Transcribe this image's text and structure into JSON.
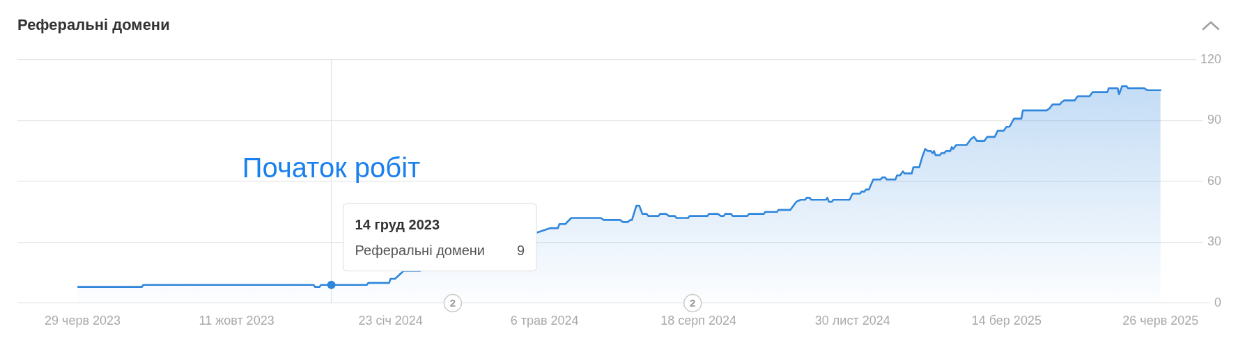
{
  "chart_data": {
    "type": "area",
    "title": "Реферальні домени",
    "x": [
      "2023-06-26",
      "2023-08-08",
      "2023-08-09",
      "2023-12-02",
      "2023-12-03",
      "2023-12-06",
      "2023-12-07",
      "2023-12-14",
      "2024-01-07",
      "2024-01-08",
      "2024-01-22",
      "2024-01-23",
      "2024-01-26",
      "2024-02-01",
      "2024-02-12",
      "2024-05-10",
      "2024-05-15",
      "2024-05-16",
      "2024-05-20",
      "2024-05-24",
      "2024-06-13",
      "2024-06-15",
      "2024-06-26",
      "2024-06-28",
      "2024-07-01",
      "2024-07-03",
      "2024-07-04",
      "2024-07-07",
      "2024-07-09",
      "2024-07-11",
      "2024-07-14",
      "2024-07-15",
      "2024-07-22",
      "2024-07-23",
      "2024-07-27",
      "2024-07-29",
      "2024-08-02",
      "2024-08-03",
      "2024-08-11",
      "2024-08-12",
      "2024-08-24",
      "2024-08-25",
      "2024-08-31",
      "2024-09-02",
      "2024-09-04",
      "2024-09-05",
      "2024-09-09",
      "2024-09-10",
      "2024-09-20",
      "2024-09-21",
      "2024-10-01",
      "2024-10-02",
      "2024-10-10",
      "2024-10-11",
      "2024-10-19",
      "2024-10-23",
      "2024-10-26",
      "2024-10-29",
      "2024-10-30",
      "2024-11-01",
      "2024-11-02",
      "2024-11-12",
      "2024-11-13",
      "2024-11-14",
      "2024-11-16",
      "2024-11-17",
      "2024-11-28",
      "2024-11-30",
      "2024-12-05",
      "2024-12-06",
      "2024-12-08",
      "2024-12-09",
      "2024-12-11",
      "2024-12-14",
      "2024-12-19",
      "2024-12-20",
      "2024-12-22",
      "2024-12-23",
      "2024-12-29",
      "2024-12-30",
      "2025-01-01",
      "2025-01-03",
      "2025-01-04",
      "2025-01-09",
      "2025-01-10",
      "2025-01-14",
      "2025-01-16",
      "2025-01-18",
      "2025-01-20",
      "2025-01-22",
      "2025-01-23",
      "2025-01-24",
      "2025-01-25",
      "2025-01-28",
      "2025-01-29",
      "2025-01-31",
      "2025-02-01",
      "2025-02-04",
      "2025-02-05",
      "2025-02-06",
      "2025-02-08",
      "2025-02-15",
      "2025-02-17",
      "2025-02-18",
      "2025-02-20",
      "2025-02-22",
      "2025-02-27",
      "2025-03-01",
      "2025-03-06",
      "2025-03-08",
      "2025-03-12",
      "2025-03-14",
      "2025-03-16",
      "2025-03-19",
      "2025-03-24",
      "2025-03-25",
      "2025-04-10",
      "2025-04-12",
      "2025-04-14",
      "2025-04-19",
      "2025-04-20",
      "2025-04-22",
      "2025-04-29",
      "2025-05-01",
      "2025-05-09",
      "2025-05-11",
      "2025-05-21",
      "2025-05-22",
      "2025-05-28",
      "2025-05-29",
      "2025-05-31",
      "2025-06-03",
      "2025-06-04",
      "2025-06-15",
      "2025-06-17",
      "2025-06-26"
    ],
    "values": [
      8,
      8,
      9,
      9,
      8,
      8,
      9,
      9,
      9,
      10,
      10,
      12,
      12,
      16,
      16,
      37,
      37,
      39,
      39,
      42,
      42,
      41,
      41,
      40,
      40,
      41,
      41,
      48,
      48,
      44,
      44,
      43,
      43,
      44,
      44,
      43,
      43,
      42,
      42,
      43,
      43,
      44,
      44,
      43,
      43,
      44,
      44,
      43,
      43,
      44,
      44,
      45,
      45,
      46,
      46,
      50,
      51,
      51,
      52,
      52,
      51,
      51,
      52,
      50,
      50,
      51,
      51,
      54,
      54,
      55,
      55,
      56,
      56,
      61,
      61,
      62,
      62,
      61,
      61,
      63,
      63,
      65,
      64,
      64,
      67,
      67,
      72,
      76,
      75,
      75,
      74,
      75,
      73,
      73,
      74,
      74,
      75,
      75,
      77,
      76,
      78,
      78,
      80,
      81,
      82,
      80,
      80,
      82,
      82,
      85,
      85,
      87,
      87,
      91,
      91,
      95,
      95,
      96,
      98,
      98,
      99,
      100,
      100,
      102,
      102,
      104,
      104,
      106,
      106,
      103,
      107,
      107,
      106,
      106,
      105,
      105
    ],
    "color": "#2f86dc",
    "xlim": [
      "2023-05-16",
      "2025-08-06"
    ],
    "xticks": [
      {
        "value": "2023-06-29",
        "label": "29 черв 2023"
      },
      {
        "value": "2023-10-11",
        "label": "11 жовт 2023"
      },
      {
        "value": "2024-01-23",
        "label": "23 січ 2024"
      },
      {
        "value": "2024-05-06",
        "label": "6 трав 2024"
      },
      {
        "value": "2024-08-18",
        "label": "18 серп 2024"
      },
      {
        "value": "2024-11-30",
        "label": "30 лист 2024"
      },
      {
        "value": "2025-03-14",
        "label": "14 бер 2025"
      },
      {
        "value": "2025-06-26",
        "label": "26 черв 2025"
      }
    ],
    "ylim": [
      0,
      120
    ],
    "yticks": [
      0,
      30,
      60,
      90,
      120
    ],
    "grid": "y",
    "ref_lines": [
      {
        "axis": "x",
        "value": "2023-12-14",
        "label": "Початок робіт",
        "color": "#e3e3e3"
      }
    ],
    "annotations": [
      {
        "text": "2",
        "x": "2024-03-05"
      },
      {
        "text": "2",
        "x": "2024-08-14"
      },
      "14 груд 2023",
      {
        "text": "Реферальні домени",
        "x": "2023-12-14",
        "y": 9
      },
      "9"
    ]
  }
}
